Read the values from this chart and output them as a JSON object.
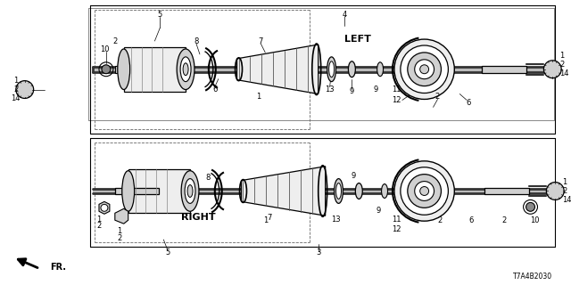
{
  "bg_color": "#ffffff",
  "line_color": "#000000",
  "diagram_code": "T7A4B2030",
  "label_left": "LEFT",
  "label_right": "RIGHT",
  "label_fr": "FR.",
  "figsize": [
    6.4,
    3.2
  ],
  "dpi": 100,
  "gray_fill": "#d0d0d0",
  "dark_gray": "#555555",
  "light_gray": "#eeeeee"
}
